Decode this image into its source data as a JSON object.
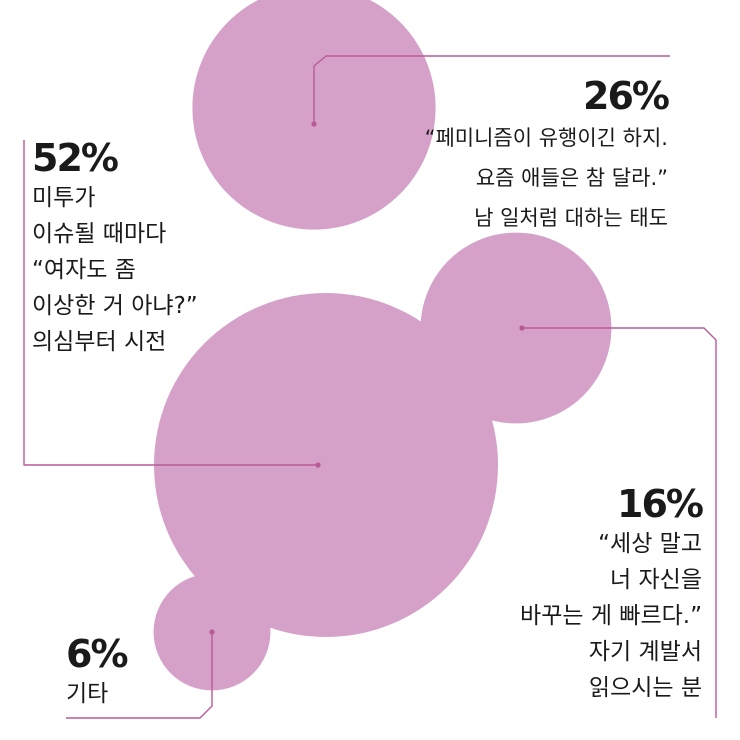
{
  "chart_data": {
    "type": "bubble",
    "color": "#d6a1c9",
    "line_color": "#b85a96",
    "items": [
      {
        "value": 52,
        "label": "52%",
        "desc": [
          "미투가",
          "이슈될 때마다",
          "“여자도 좀",
          "이상한 거 아냐?”",
          "의심부터 시전"
        ]
      },
      {
        "value": 26,
        "label": "26%",
        "desc": [
          "“페미니즘이 유행이긴 하지.",
          "요즘 애들은 참 달라.”",
          "남 일처럼 대하는 태도"
        ]
      },
      {
        "value": 16,
        "label": "16%",
        "desc": [
          "“세상 말고",
          "너 자신을",
          "바꾸는 게 빠르다.”",
          "자기 계발서",
          "읽으시는 분"
        ]
      },
      {
        "value": 6,
        "label": "6%",
        "desc": [
          "기타"
        ]
      }
    ]
  }
}
